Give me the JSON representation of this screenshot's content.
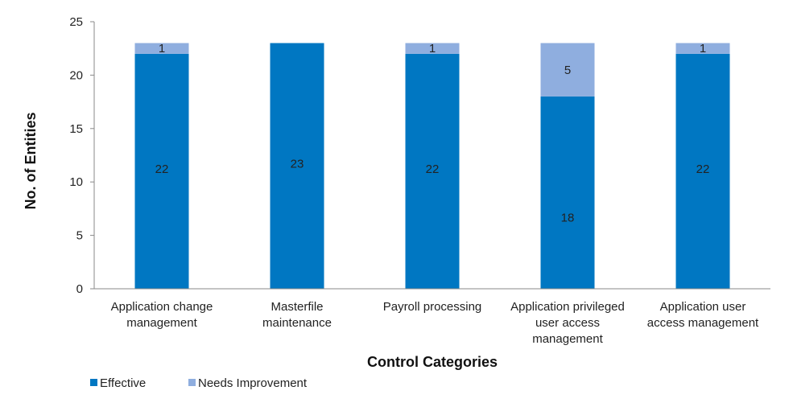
{
  "chart_data": {
    "type": "bar",
    "stacked": true,
    "categories": [
      [
        "Application change",
        "management"
      ],
      [
        "Masterfile",
        "maintenance"
      ],
      [
        "Payroll processing"
      ],
      [
        "Application privileged",
        "user access",
        "management"
      ],
      [
        "Application user",
        "access management"
      ]
    ],
    "series": [
      {
        "name": "Effective",
        "color": "#0077c2",
        "values": [
          22,
          23,
          22,
          18,
          22
        ]
      },
      {
        "name": "Needs Improvement",
        "color": "#8faedf",
        "values": [
          1,
          0,
          1,
          5,
          1
        ]
      }
    ],
    "xlabel": "Control Categories",
    "ylabel": "No. of Entities",
    "ylim": [
      0,
      25
    ],
    "yticks": [
      0,
      5,
      10,
      15,
      20,
      25
    ],
    "grid": false,
    "legend_position": "bottom-left"
  }
}
